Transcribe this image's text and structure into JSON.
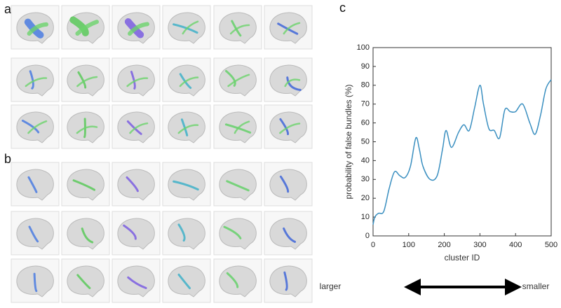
{
  "panel_labels": [
    "a",
    "b",
    "c"
  ],
  "chart_data": {
    "type": "line",
    "x_label": "cluster  ID",
    "y_label": "probability of false bundles (%)",
    "annotations": [
      "larger",
      "smaller"
    ],
    "x": [
      0,
      5,
      15,
      30,
      45,
      60,
      75,
      90,
      105,
      120,
      130,
      140,
      160,
      180,
      195,
      205,
      220,
      240,
      255,
      270,
      285,
      300,
      310,
      325,
      340,
      355,
      370,
      385,
      400,
      420,
      440,
      455,
      470,
      485,
      500
    ],
    "series": [
      {
        "name": "probability",
        "color": "#3a8fc0",
        "values": [
          6,
          10,
          12,
          13,
          25,
          34,
          32,
          31,
          37,
          52,
          46,
          37,
          30,
          32,
          46,
          56,
          47,
          55,
          59,
          56,
          68,
          80,
          70,
          57,
          56,
          52,
          67,
          66,
          66,
          70,
          60,
          54,
          64,
          78,
          83
        ]
      }
    ],
    "xlim": [
      0,
      500
    ],
    "xticks": [
      0,
      100,
      200,
      300,
      400,
      500
    ],
    "ylim": [
      0,
      100
    ],
    "yticks": [
      0,
      10,
      20,
      30,
      40,
      50,
      60,
      70,
      80,
      90,
      100
    ]
  }
}
